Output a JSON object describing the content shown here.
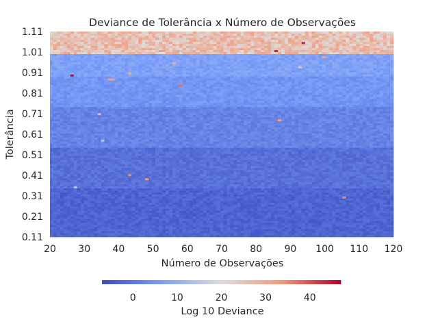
{
  "chart_data": {
    "type": "heatmap",
    "title": "Deviance de Tolerância x Número de Observações",
    "xlabel": "Número de Observações",
    "ylabel": "Tolerância",
    "x_tick_labels": [
      "20",
      "30",
      "40",
      "50",
      "60",
      "70",
      "80",
      "90",
      "100",
      "110",
      "120"
    ],
    "y_tick_labels": [
      "1.11",
      "1.01",
      "0.91",
      "0.81",
      "0.71",
      "0.61",
      "0.51",
      "0.41",
      "0.31",
      "0.21",
      "0.11"
    ],
    "x_range": [
      20,
      120
    ],
    "y_range": [
      0.11,
      1.11
    ],
    "x_step": 1,
    "y_step": 0.01,
    "colormap": "coolwarm",
    "color_range": [
      -7,
      47
    ],
    "colorbar": {
      "label": "Log 10 Deviance",
      "ticks": [
        "0",
        "10",
        "20",
        "30",
        "40"
      ],
      "position": "bottom"
    },
    "value_bands": [
      {
        "tolerance_range": [
          0.11,
          0.35
        ],
        "typical_log10_deviance": -3
      },
      {
        "tolerance_range": [
          0.35,
          0.55
        ],
        "typical_log10_deviance": -1
      },
      {
        "tolerance_range": [
          0.55,
          0.75
        ],
        "typical_log10_deviance": 2
      },
      {
        "tolerance_range": [
          0.75,
          0.9
        ],
        "typical_log10_deviance": 5
      },
      {
        "tolerance_range": [
          0.9,
          1.01
        ],
        "typical_log10_deviance": 7
      },
      {
        "tolerance_range": [
          1.01,
          1.11
        ],
        "typical_log10_deviance": 26
      }
    ],
    "outliers": [
      {
        "x": 26,
        "y": 0.9,
        "value": 46
      },
      {
        "x": 37,
        "y": 0.88,
        "value": 32
      },
      {
        "x": 38,
        "y": 0.88,
        "value": 32
      },
      {
        "x": 58,
        "y": 0.85,
        "value": 37
      },
      {
        "x": 56,
        "y": 0.96,
        "value": 30
      },
      {
        "x": 43,
        "y": 0.91,
        "value": 30
      },
      {
        "x": 34,
        "y": 0.71,
        "value": 28
      },
      {
        "x": 87,
        "y": 0.68,
        "value": 32
      },
      {
        "x": 43,
        "y": 0.41,
        "value": 35
      },
      {
        "x": 48,
        "y": 0.39,
        "value": 32
      },
      {
        "x": 106,
        "y": 0.3,
        "value": 35
      },
      {
        "x": 100,
        "y": 0.99,
        "value": 31
      },
      {
        "x": 93,
        "y": 0.94,
        "value": 25
      },
      {
        "x": 27,
        "y": 0.35,
        "value": 14
      },
      {
        "x": 35,
        "y": 0.58,
        "value": 14
      },
      {
        "x": 94,
        "y": 1.06,
        "value": 44
      },
      {
        "x": 86,
        "y": 1.02,
        "value": 44
      }
    ]
  }
}
